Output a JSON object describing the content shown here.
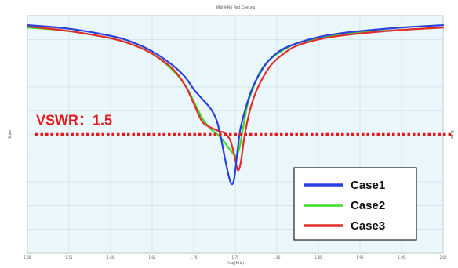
{
  "chart_data": {
    "type": "line",
    "title": "BRW_9995_Rett_Com.mp",
    "xlabel": "Freq [MHz]",
    "ylabel": "Scale",
    "ylabel_right": "Scale",
    "xlim": [
      0,
      100
    ],
    "ylim": [
      0,
      100
    ],
    "xticks": [
      0,
      10,
      20,
      30,
      40,
      50,
      60,
      70,
      80,
      90,
      100
    ],
    "xtick_labels": [
      "1.50",
      "1.55",
      "1.60",
      "1.65",
      "1.70",
      "1.75",
      "1.80",
      "1.85",
      "1.90",
      "1.95",
      "2.00"
    ],
    "yticks": [
      0,
      10,
      20,
      30,
      40,
      50,
      60,
      70,
      80,
      90,
      100
    ],
    "ytick_labels": [
      "",
      "",
      "",
      "",
      "",
      "",
      "",
      "",
      "",
      "",
      ""
    ],
    "grid": true,
    "legend_position": "bottom-right",
    "annotation": {
      "text": "VSWR：1.5",
      "y": 50,
      "color": "#e41a1c"
    },
    "series": [
      {
        "name": "Case1",
        "color": "#2b3fe0",
        "x": [
          0,
          10,
          20,
          25,
          30,
          35,
          38,
          40,
          42,
          44,
          45.5,
          46.5,
          47.5,
          48.5,
          49.2,
          49.8,
          50.4,
          51.2,
          52.5,
          54,
          56,
          58,
          61,
          65,
          70,
          75,
          80,
          90,
          100
        ],
        "y": [
          96,
          94.5,
          91.5,
          89,
          85,
          79,
          74,
          69,
          65,
          61,
          56,
          49,
          40,
          32,
          29,
          32,
          41,
          52,
          61,
          69,
          76,
          81,
          85.5,
          88.5,
          91,
          92.5,
          93.5,
          95,
          96
        ]
      },
      {
        "name": "Case2",
        "color": "#3ddc28",
        "x": [
          0,
          10,
          20,
          25,
          30,
          35,
          38,
          40,
          42,
          44,
          46,
          47.5,
          48.5,
          49.5,
          50.4,
          51.2,
          52,
          53,
          54.5,
          56,
          58,
          61,
          65,
          70,
          75,
          80,
          90,
          100
        ],
        "y": [
          95,
          93.5,
          90.5,
          88,
          84,
          77,
          70.5,
          64,
          57,
          52.5,
          49.5,
          46.5,
          44,
          42,
          41,
          46,
          54,
          63,
          70.5,
          76.5,
          81,
          85,
          88.5,
          90.5,
          92,
          93,
          94,
          95
        ]
      },
      {
        "name": "Case3",
        "color": "#e32d2d",
        "x": [
          0,
          10,
          20,
          25,
          30,
          35,
          38,
          40,
          42,
          44,
          46,
          47.5,
          48.8,
          49.8,
          50.6,
          51.3,
          52.2,
          53.5,
          55,
          57,
          59,
          62,
          65,
          70,
          75,
          80,
          90,
          100
        ],
        "y": [
          95.5,
          93.5,
          90.5,
          88,
          84,
          77.5,
          70.5,
          63,
          55.5,
          53,
          51.5,
          50.5,
          47.5,
          41,
          35,
          38,
          49,
          60,
          68,
          75,
          80,
          84.5,
          87.5,
          90,
          91.5,
          92.5,
          94,
          95
        ]
      }
    ]
  },
  "colors": {
    "plot_background": "#eaf7fb",
    "grid": "#c8dce2",
    "axes": "#9aa3a8"
  }
}
